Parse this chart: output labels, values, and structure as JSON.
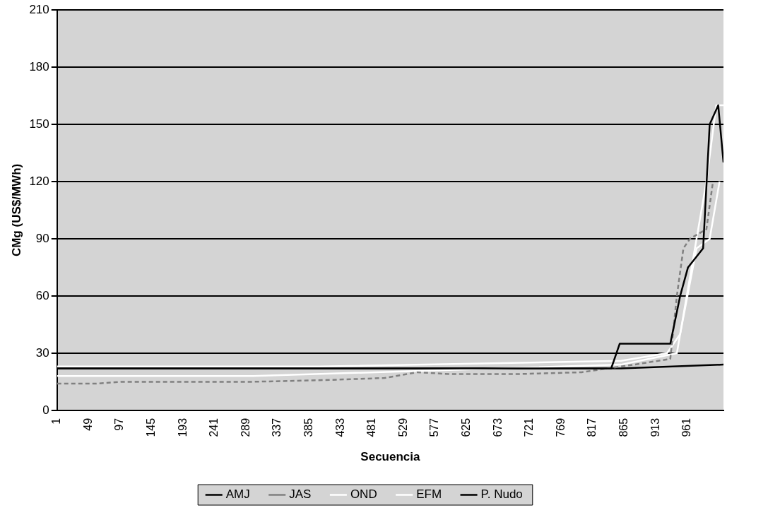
{
  "chart_data": {
    "type": "line",
    "xlabel": "Secuencia",
    "ylabel": "CMg (US$/MWh)",
    "xlim": [
      1,
      1016
    ],
    "xticks": [
      1,
      49,
      97,
      145,
      193,
      241,
      289,
      337,
      385,
      433,
      481,
      529,
      577,
      625,
      673,
      721,
      769,
      817,
      865,
      913,
      961
    ],
    "ylim": [
      0,
      210
    ],
    "yticks": [
      0,
      30,
      60,
      90,
      120,
      150,
      180,
      210
    ],
    "grid": "y",
    "legend": "bottom",
    "marker": "none",
    "series": [
      {
        "name": "AMJ",
        "color": "#000000",
        "x": [
          1,
          845,
          858,
          924,
          935,
          950,
          962,
          985,
          995,
          1008,
          1016
        ],
        "values": [
          22,
          22,
          35,
          35,
          35,
          60,
          75,
          85,
          150,
          160,
          130
        ]
      },
      {
        "name": "JAS",
        "color": "#808080",
        "line_style": "dashed",
        "x": [
          1,
          60,
          100,
          300,
          420,
          500,
          550,
          600,
          700,
          800,
          880,
          935,
          945,
          955,
          965,
          990,
          1000
        ],
        "values": [
          14,
          14,
          15,
          15,
          16,
          17,
          20,
          19,
          19,
          20,
          24,
          27,
          60,
          85,
          90,
          95,
          120
        ]
      },
      {
        "name": "OND",
        "color": "#ffffff",
        "x": [
          1,
          400,
          860,
          930,
          950,
          975,
          995,
          1010
        ],
        "values": [
          23,
          23,
          26,
          30,
          40,
          85,
          90,
          120
        ]
      },
      {
        "name": "EFM",
        "color": "#ffffff",
        "x": [
          1,
          300,
          860,
          945,
          960,
          990,
          1005,
          1016
        ],
        "values": [
          18,
          18,
          24,
          30,
          60,
          120,
          160,
          160
        ]
      },
      {
        "name": "P. Nudo",
        "color": "#000000",
        "x": [
          1,
          860,
          1016
        ],
        "values": [
          22,
          22,
          24
        ]
      }
    ]
  }
}
